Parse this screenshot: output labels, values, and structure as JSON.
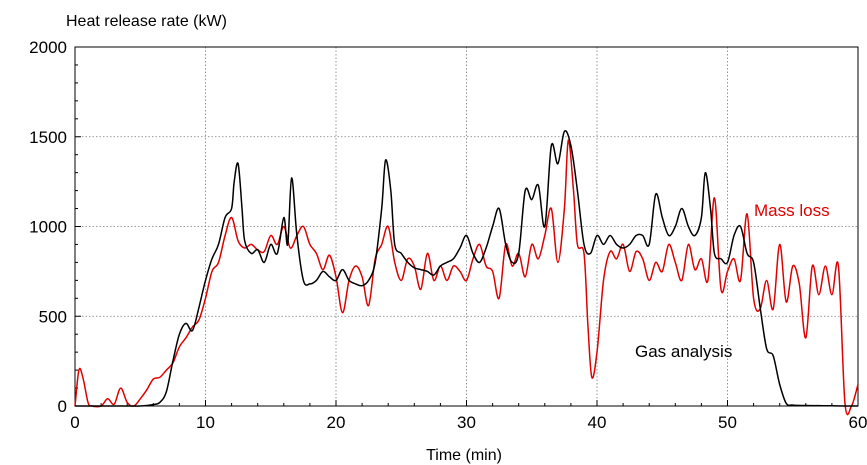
{
  "chart_data": {
    "type": "line",
    "ylabel": "Heat release rate (kW)",
    "xlabel": "Time (min)",
    "xlim": [
      0,
      60
    ],
    "ylim": [
      0,
      2000
    ],
    "x_ticks": [
      "0",
      "10",
      "20",
      "30",
      "40",
      "50",
      "60"
    ],
    "y_ticks": [
      "0",
      "500",
      "1000",
      "1500",
      "2000"
    ],
    "grid": true,
    "series": [
      {
        "name": "Gas analysis",
        "color": "#000000",
        "points": [
          [
            0,
            0
          ],
          [
            2,
            0
          ],
          [
            4,
            0
          ],
          [
            5,
            0
          ],
          [
            6,
            8
          ],
          [
            6.5,
            20
          ],
          [
            7,
            80
          ],
          [
            7.5,
            250
          ],
          [
            8,
            400
          ],
          [
            8.5,
            460
          ],
          [
            9,
            420
          ],
          [
            9.5,
            550
          ],
          [
            10,
            700
          ],
          [
            10.5,
            820
          ],
          [
            11,
            900
          ],
          [
            11.5,
            1050
          ],
          [
            12,
            1100
          ],
          [
            12.2,
            1250
          ],
          [
            12.5,
            1350
          ],
          [
            12.8,
            1100
          ],
          [
            13,
            920
          ],
          [
            13.5,
            850
          ],
          [
            14,
            870
          ],
          [
            14.5,
            800
          ],
          [
            15,
            900
          ],
          [
            15.5,
            850
          ],
          [
            16,
            1050
          ],
          [
            16.3,
            900
          ],
          [
            16.6,
            1270
          ],
          [
            17,
            950
          ],
          [
            17.5,
            700
          ],
          [
            18,
            680
          ],
          [
            18.5,
            700
          ],
          [
            19,
            750
          ],
          [
            19.5,
            720
          ],
          [
            20,
            700
          ],
          [
            20.5,
            760
          ],
          [
            21,
            700
          ],
          [
            21.5,
            680
          ],
          [
            22,
            670
          ],
          [
            22.5,
            700
          ],
          [
            23,
            800
          ],
          [
            23.5,
            1100
          ],
          [
            23.8,
            1370
          ],
          [
            24.2,
            1200
          ],
          [
            24.5,
            900
          ],
          [
            25,
            850
          ],
          [
            25.5,
            800
          ],
          [
            26,
            770
          ],
          [
            26.5,
            760
          ],
          [
            27,
            750
          ],
          [
            27.5,
            730
          ],
          [
            28,
            780
          ],
          [
            28.5,
            800
          ],
          [
            29,
            820
          ],
          [
            29.5,
            880
          ],
          [
            30,
            950
          ],
          [
            30.5,
            850
          ],
          [
            31,
            800
          ],
          [
            31.5,
            880
          ],
          [
            32,
            1000
          ],
          [
            32.5,
            1100
          ],
          [
            33,
            900
          ],
          [
            33.5,
            800
          ],
          [
            34,
            850
          ],
          [
            34.5,
            1200
          ],
          [
            35,
            1150
          ],
          [
            35.5,
            1230
          ],
          [
            36,
            1000
          ],
          [
            36.5,
            1450
          ],
          [
            37,
            1350
          ],
          [
            37.5,
            1530
          ],
          [
            38,
            1450
          ],
          [
            38.5,
            1200
          ],
          [
            39,
            900
          ],
          [
            39.5,
            850
          ],
          [
            40,
            950
          ],
          [
            40.5,
            900
          ],
          [
            41,
            950
          ],
          [
            41.5,
            900
          ],
          [
            42,
            880
          ],
          [
            42.5,
            900
          ],
          [
            43,
            950
          ],
          [
            43.5,
            950
          ],
          [
            44,
            900
          ],
          [
            44.5,
            1180
          ],
          [
            45,
            1050
          ],
          [
            45.5,
            950
          ],
          [
            46,
            1000
          ],
          [
            46.5,
            1100
          ],
          [
            47,
            1000
          ],
          [
            47.5,
            950
          ],
          [
            48,
            1050
          ],
          [
            48.3,
            1300
          ],
          [
            48.7,
            1100
          ],
          [
            49,
            850
          ],
          [
            49.5,
            820
          ],
          [
            50,
            800
          ],
          [
            50.5,
            950
          ],
          [
            51,
            1000
          ],
          [
            51.5,
            850
          ],
          [
            52,
            800
          ],
          [
            52.5,
            550
          ],
          [
            53,
            320
          ],
          [
            53.5,
            280
          ],
          [
            54,
            120
          ],
          [
            54.5,
            15
          ],
          [
            55,
            5
          ],
          [
            56,
            3
          ],
          [
            57,
            2
          ],
          [
            58,
            1
          ],
          [
            59,
            0
          ],
          [
            60,
            0
          ]
        ]
      },
      {
        "name": "Mass loss",
        "color": "#e00000",
        "points": [
          [
            0,
            0
          ],
          [
            0.3,
            200
          ],
          [
            0.6,
            160
          ],
          [
            1,
            20
          ],
          [
            1.3,
            0
          ],
          [
            2,
            0
          ],
          [
            2.5,
            40
          ],
          [
            3,
            10
          ],
          [
            3.5,
            100
          ],
          [
            4,
            20
          ],
          [
            4.5,
            0
          ],
          [
            5,
            40
          ],
          [
            5.5,
            90
          ],
          [
            6,
            150
          ],
          [
            6.5,
            160
          ],
          [
            7,
            200
          ],
          [
            7.5,
            240
          ],
          [
            8,
            330
          ],
          [
            8.5,
            380
          ],
          [
            9,
            440
          ],
          [
            9.5,
            480
          ],
          [
            10,
            600
          ],
          [
            10.5,
            750
          ],
          [
            11,
            800
          ],
          [
            11.5,
            950
          ],
          [
            12,
            1050
          ],
          [
            12.5,
            920
          ],
          [
            13,
            880
          ],
          [
            13.5,
            900
          ],
          [
            14,
            870
          ],
          [
            14.5,
            860
          ],
          [
            15,
            950
          ],
          [
            15.5,
            900
          ],
          [
            16,
            1000
          ],
          [
            16.5,
            880
          ],
          [
            17,
            950
          ],
          [
            17.5,
            1000
          ],
          [
            18,
            900
          ],
          [
            18.5,
            850
          ],
          [
            19,
            760
          ],
          [
            19.5,
            840
          ],
          [
            20,
            720
          ],
          [
            20.5,
            520
          ],
          [
            21,
            700
          ],
          [
            21.5,
            780
          ],
          [
            22,
            720
          ],
          [
            22.5,
            560
          ],
          [
            23,
            820
          ],
          [
            23.5,
            900
          ],
          [
            24,
            1000
          ],
          [
            24.5,
            800
          ],
          [
            25,
            700
          ],
          [
            25.5,
            820
          ],
          [
            26,
            780
          ],
          [
            26.5,
            650
          ],
          [
            27,
            850
          ],
          [
            27.5,
            700
          ],
          [
            28,
            780
          ],
          [
            28.5,
            700
          ],
          [
            29,
            780
          ],
          [
            29.5,
            750
          ],
          [
            30,
            700
          ],
          [
            30.5,
            820
          ],
          [
            31,
            900
          ],
          [
            31.5,
            780
          ],
          [
            32,
            750
          ],
          [
            32.5,
            600
          ],
          [
            33,
            900
          ],
          [
            33.5,
            780
          ],
          [
            34,
            850
          ],
          [
            34.5,
            720
          ],
          [
            35,
            900
          ],
          [
            35.5,
            820
          ],
          [
            36,
            950
          ],
          [
            36.5,
            1100
          ],
          [
            37,
            800
          ],
          [
            37.5,
            1100
          ],
          [
            37.8,
            1480
          ],
          [
            38.2,
            1200
          ],
          [
            38.5,
            900
          ],
          [
            39,
            850
          ],
          [
            39.3,
            450
          ],
          [
            39.6,
            160
          ],
          [
            40,
            300
          ],
          [
            40.5,
            700
          ],
          [
            41,
            860
          ],
          [
            41.5,
            820
          ],
          [
            42,
            900
          ],
          [
            42.5,
            750
          ],
          [
            43,
            860
          ],
          [
            43.5,
            820
          ],
          [
            44,
            700
          ],
          [
            44.5,
            800
          ],
          [
            45,
            750
          ],
          [
            45.5,
            900
          ],
          [
            46,
            800
          ],
          [
            46.5,
            700
          ],
          [
            47,
            900
          ],
          [
            47.5,
            760
          ],
          [
            48,
            820
          ],
          [
            48.5,
            700
          ],
          [
            49,
            1160
          ],
          [
            49.5,
            650
          ],
          [
            50,
            750
          ],
          [
            50.5,
            820
          ],
          [
            51,
            700
          ],
          [
            51.5,
            1070
          ],
          [
            52,
            600
          ],
          [
            52.5,
            540
          ],
          [
            53,
            700
          ],
          [
            53.5,
            540
          ],
          [
            54,
            900
          ],
          [
            54.5,
            580
          ],
          [
            55,
            780
          ],
          [
            55.5,
            680
          ],
          [
            56,
            380
          ],
          [
            56.5,
            780
          ],
          [
            57,
            620
          ],
          [
            57.5,
            780
          ],
          [
            58,
            620
          ],
          [
            58.5,
            780
          ],
          [
            59,
            20
          ],
          [
            59.5,
            0
          ],
          [
            60,
            120
          ]
        ]
      }
    ],
    "annotations": [
      {
        "text": "Mass loss",
        "series": "Mass loss"
      },
      {
        "text": "Gas analysis",
        "series": "Gas analysis"
      }
    ]
  }
}
